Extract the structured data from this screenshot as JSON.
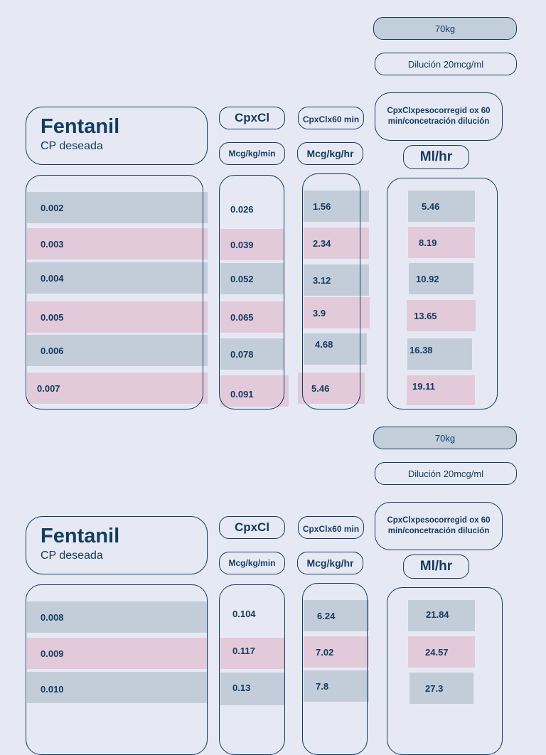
{
  "sections": [
    {
      "weight": "70kg",
      "dilution": "Dilución 20mcg/ml",
      "drug": "Fentanil",
      "subtitle": "CP deseada",
      "col_cpxcl": "CpxCl",
      "col_cpxclx60": "CpxClx60 min",
      "col_formula": "CpxClxpesocorregid ox 60 min/concetración dilución",
      "unit_min": "Mcg/kg/min",
      "unit_hr": "Mcg/kg/hr",
      "unit_mlhr": "Ml/hr",
      "rows": [
        {
          "cp": "0.002",
          "mcgmin": "0.026",
          "mcghr": "1.56",
          "mlhr": "5.46"
        },
        {
          "cp": "0.003",
          "mcgmin": "0.039",
          "mcghr": "2.34",
          "mlhr": "8.19"
        },
        {
          "cp": "0.004",
          "mcgmin": "0.052",
          "mcghr": "3.12",
          "mlhr": "10.92"
        },
        {
          "cp": "0.005",
          "mcgmin": "0.065",
          "mcghr": "3.9",
          "mlhr": "13.65"
        },
        {
          "cp": "0.006",
          "mcgmin": "0.078",
          "mcghr": "4.68",
          "mlhr": "16.38"
        },
        {
          "cp": "0.007",
          "mcgmin": "0.091",
          "mcghr": "5.46",
          "mlhr": "19.11"
        }
      ]
    },
    {
      "weight": "70kg",
      "dilution": "Dilución 20mcg/ml",
      "drug": "Fentanil",
      "subtitle": "CP deseada",
      "col_cpxcl": "CpxCl",
      "col_cpxclx60": "CpxClx60 min",
      "col_formula": "CpxClxpesocorregid ox 60 min/concetración dilución",
      "unit_min": "Mcg/kg/min",
      "unit_hr": "Mcg/kg/hr",
      "unit_mlhr": "Ml/hr",
      "rows": [
        {
          "cp": "0.008",
          "mcgmin": "0.104",
          "mcghr": "6.24",
          "mlhr": "21.84"
        },
        {
          "cp": "0.009",
          "mcgmin": "0.117",
          "mcghr": "7.02",
          "mlhr": "24.57"
        },
        {
          "cp": "0.010",
          "mcgmin": "0.13",
          "mcghr": "7.8",
          "mlhr": "27.3"
        }
      ]
    }
  ]
}
